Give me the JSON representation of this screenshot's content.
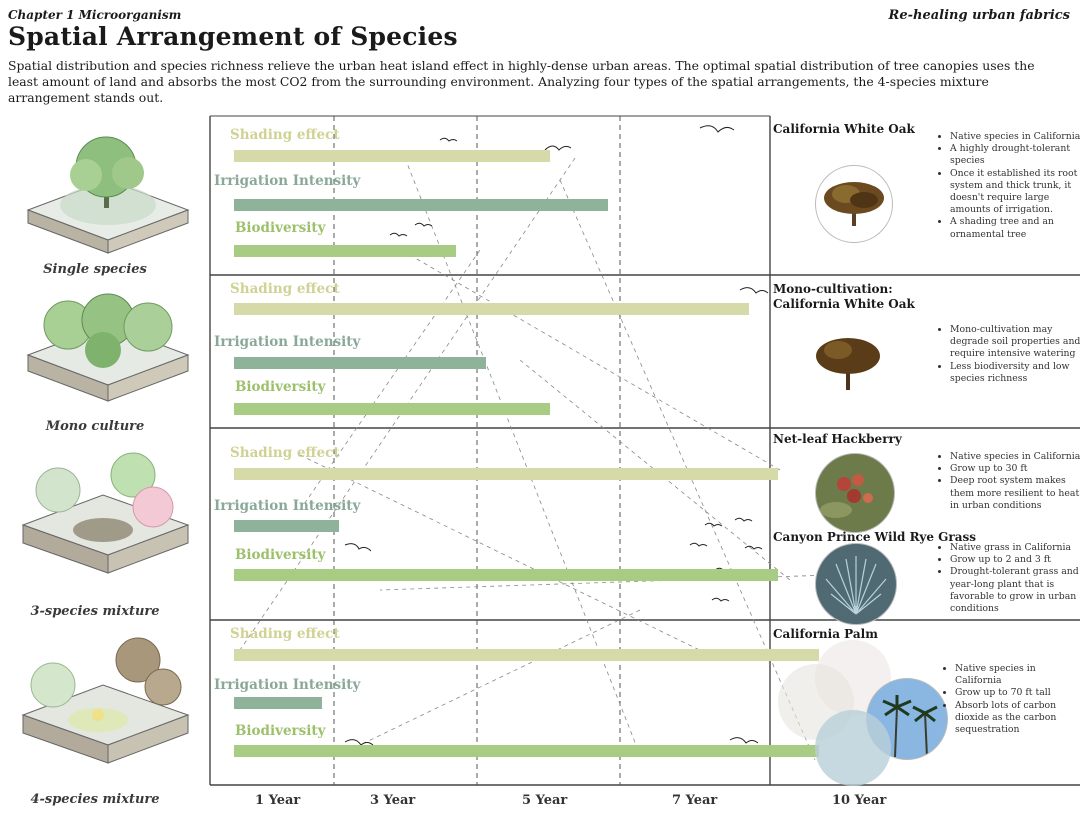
{
  "header": {
    "chapter": "Chapter 1 Microorganism",
    "brand": "Re-healing urban fabrics",
    "title": "Spatial Arrangement of Species",
    "description": "Spatial distribution and species richness relieve the urban heat island effect in highly-dense urban areas. The optimal spatial distribution of tree canopies uses the least amount of land and absorbs the most CO2 from the surrounding environment. Analyzing four types of the spatial arrangements, the 4-species mixture arrangement stands out."
  },
  "years": [
    "1 Year",
    "3 Year",
    "5 Year",
    "7 Year",
    "10 Year"
  ],
  "colors": {
    "shading": "#d6d9a8",
    "irrigation": "#8fb29a",
    "biodiversity": "#a9cc85",
    "shading_label": "#d0d294",
    "irrigation_label": "#8aa898",
    "biodiversity_label": "#9dc06b"
  },
  "chart_data": {
    "type": "bar",
    "x_axis_ticks": [
      "1 Year",
      "3 Year",
      "5 Year",
      "7 Year",
      "10 Year"
    ],
    "categories": [
      "Shading effect",
      "Irrigation Intensity",
      "Biodiversity"
    ],
    "rows": [
      {
        "name": "Single species",
        "values": [
          5.4,
          6.4,
          3.8
        ]
      },
      {
        "name": "Mono culture",
        "values": [
          8.8,
          4.3,
          5.4
        ]
      },
      {
        "name": "3-species mixture",
        "values": [
          9.3,
          1.8,
          9.3
        ]
      },
      {
        "name": "4-species mixture",
        "values": [
          10.0,
          1.5,
          10.0
        ]
      }
    ]
  },
  "rows": [
    {
      "label": "Single species",
      "species": [
        {
          "name": "California White Oak",
          "notes": [
            "Native species in California.",
            "A highly drought-tolerant species",
            "Once it established its root system and thick trunk, it doesn't require large amounts of irrigation.",
            "A shading tree and an ornamental tree"
          ]
        }
      ]
    },
    {
      "label": "Mono culture",
      "species": [
        {
          "name": "Mono-cultivation:\nCalifornia White Oak",
          "notes": [
            "Mono-cultivation may degrade soil properties and require intensive watering",
            "Less biodiversity and low species richness"
          ]
        }
      ]
    },
    {
      "label": "3-species mixture",
      "species": [
        {
          "name": "Net-leaf Hackberry",
          "notes": [
            "Native species in California",
            "Grow up to 30 ft",
            "Deep root system makes them more resilient to heat in urban conditions"
          ]
        },
        {
          "name": "Canyon Prince Wild Rye Grass",
          "notes": [
            "Native grass in California",
            "Grow up to 2 and 3 ft",
            "Drought-tolerant grass and a year-long plant that is favorable to grow in urban conditions"
          ]
        }
      ]
    },
    {
      "label": "4-species mixture",
      "species": [
        {
          "name": "California Palm",
          "notes": [
            "Native species in California",
            "Grow up to 70 ft tall",
            "Absorb lots of carbon dioxide as the carbon sequestration"
          ]
        }
      ]
    }
  ]
}
